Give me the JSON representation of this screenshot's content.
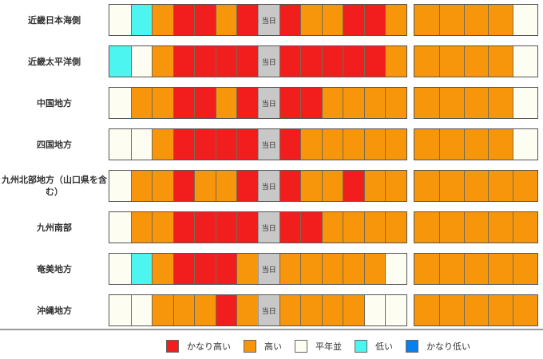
{
  "colors": {
    "very_high": "#f21d1d",
    "high": "#f7960b",
    "normal": "#fdfdf2",
    "low": "#4df5f0",
    "very_low": "#0a80ee",
    "today": "#c8c8c8"
  },
  "today_label": "当日",
  "regions": [
    {
      "name": "近畿日本海側",
      "main": [
        "normal",
        "low",
        "high",
        "very_high",
        "very_high",
        "high",
        "very_high",
        "today",
        "very_high",
        "high",
        "high",
        "very_high",
        "very_high",
        "high"
      ],
      "ext": [
        "high",
        "high",
        "high",
        "high",
        "normal"
      ]
    },
    {
      "name": "近畿太平洋側",
      "main": [
        "low",
        "normal",
        "high",
        "very_high",
        "very_high",
        "very_high",
        "very_high",
        "today",
        "very_high",
        "very_high",
        "very_high",
        "very_high",
        "very_high",
        "high"
      ],
      "ext": [
        "high",
        "high",
        "high",
        "high",
        "normal"
      ]
    },
    {
      "name": "中国地方",
      "main": [
        "normal",
        "high",
        "high",
        "very_high",
        "very_high",
        "high",
        "very_high",
        "today",
        "very_high",
        "very_high",
        "high",
        "high",
        "high",
        "high"
      ],
      "ext": [
        "high",
        "high",
        "high",
        "high",
        "normal"
      ]
    },
    {
      "name": "四国地方",
      "main": [
        "normal",
        "normal",
        "high",
        "very_high",
        "very_high",
        "very_high",
        "very_high",
        "today",
        "very_high",
        "high",
        "high",
        "high",
        "high",
        "high"
      ],
      "ext": [
        "high",
        "high",
        "high",
        "high",
        "normal"
      ]
    },
    {
      "name": "九州北部地方（山口県を含む）",
      "main": [
        "normal",
        "high",
        "high",
        "very_high",
        "high",
        "high",
        "very_high",
        "today",
        "very_high",
        "high",
        "high",
        "very_high",
        "high",
        "high"
      ],
      "ext": [
        "high",
        "high",
        "high",
        "high",
        "high"
      ]
    },
    {
      "name": "九州南部",
      "main": [
        "normal",
        "high",
        "high",
        "very_high",
        "very_high",
        "very_high",
        "very_high",
        "today",
        "very_high",
        "very_high",
        "high",
        "high",
        "high",
        "high"
      ],
      "ext": [
        "high",
        "high",
        "high",
        "high",
        "high"
      ]
    },
    {
      "name": "奄美地方",
      "main": [
        "normal",
        "low",
        "high",
        "very_high",
        "very_high",
        "very_high",
        "high",
        "today",
        "high",
        "high",
        "high",
        "high",
        "high",
        "normal"
      ],
      "ext": [
        "high",
        "high",
        "high",
        "high",
        "high"
      ]
    },
    {
      "name": "沖縄地方",
      "main": [
        "normal",
        "normal",
        "high",
        "high",
        "high",
        "very_high",
        "high",
        "today",
        "high",
        "high",
        "high",
        "high",
        "normal",
        "normal"
      ],
      "ext": [
        "high",
        "high",
        "high",
        "high",
        "high"
      ]
    }
  ],
  "legend": [
    {
      "key": "very_high",
      "label": "かなり高い"
    },
    {
      "key": "high",
      "label": "高い"
    },
    {
      "key": "normal",
      "label": "平年並"
    },
    {
      "key": "low",
      "label": "低い"
    },
    {
      "key": "very_low",
      "label": "かなり低い"
    }
  ]
}
